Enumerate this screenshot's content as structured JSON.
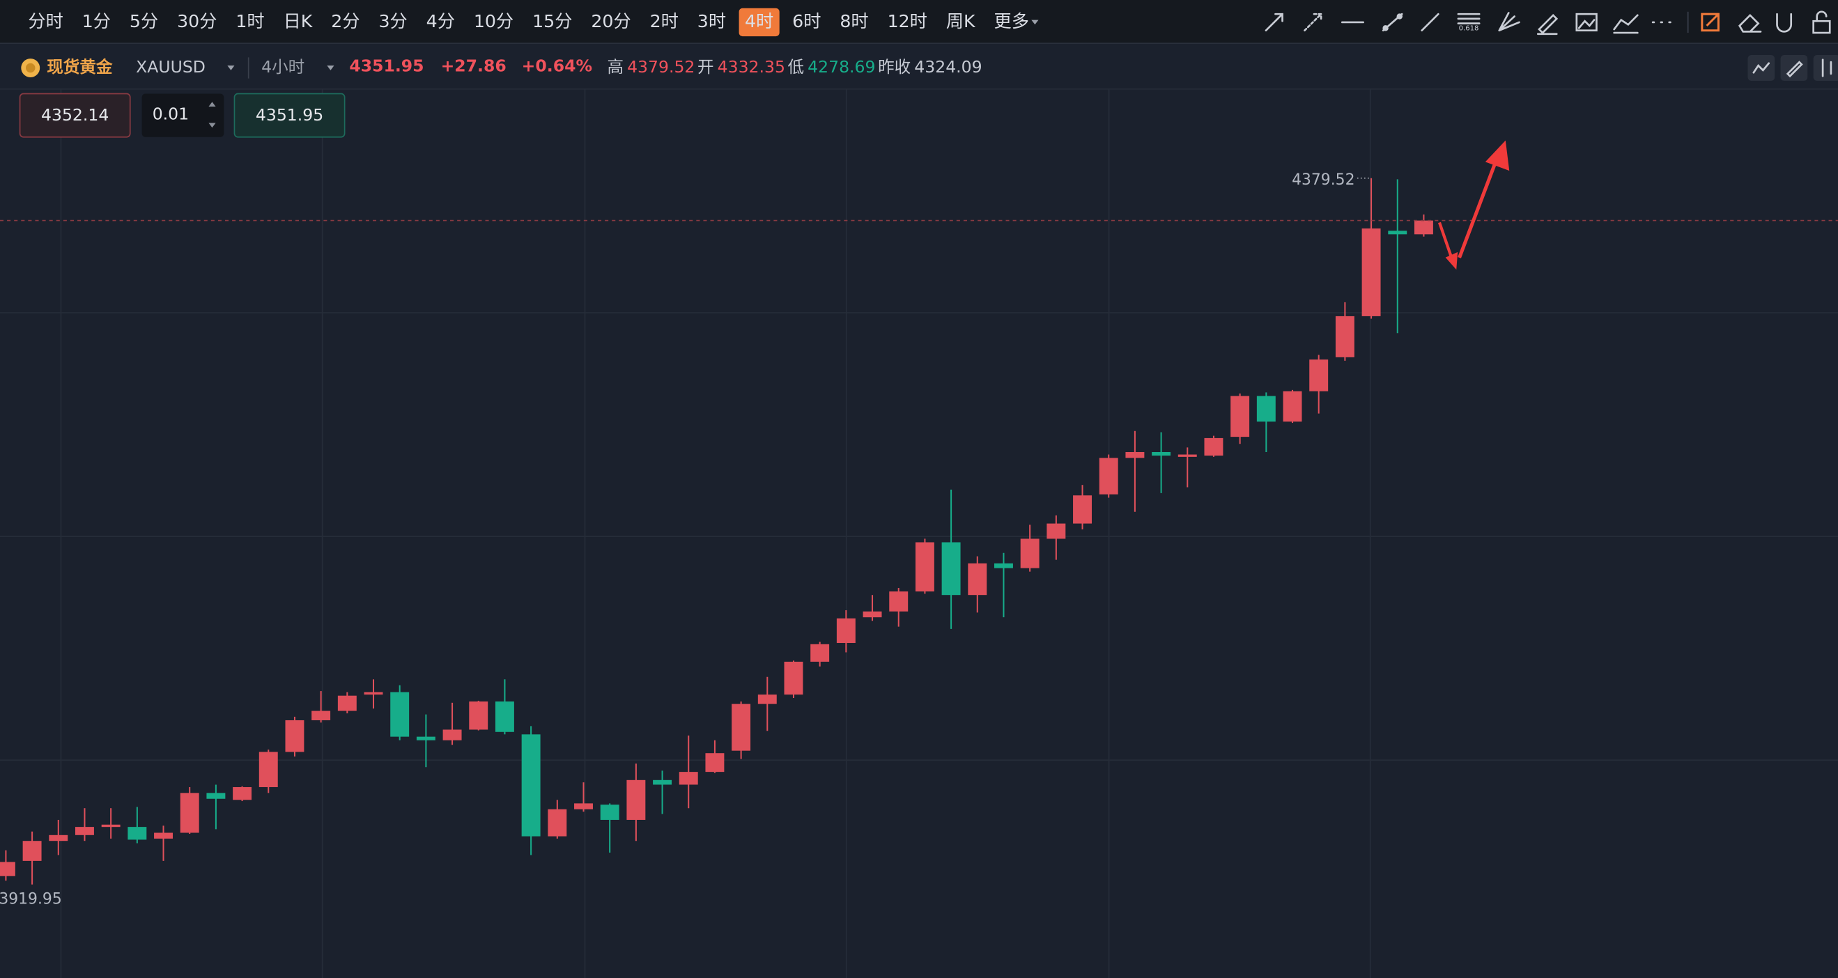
{
  "toolbar": {
    "intervals": [
      "分时",
      "1分",
      "5分",
      "30分",
      "1时",
      "日K",
      "2分",
      "3分",
      "4分",
      "10分",
      "15分",
      "20分",
      "2时",
      "3时",
      "4时",
      "6时",
      "8时",
      "12时",
      "周K"
    ],
    "active": "4时",
    "more": "更多"
  },
  "header": {
    "name": "现货黄金",
    "symbol": "XAUUSD",
    "period": "4小时",
    "price": "4351.95",
    "change": "+27.86",
    "change_pct": "+0.64%",
    "high_label": "高",
    "high": "4379.52",
    "open_label": "开",
    "open": "4332.35",
    "low_label": "低",
    "low": "4278.69",
    "prev_close_label": "昨收",
    "prev_close": "4324.09"
  },
  "order": {
    "sell": "4352.14",
    "lots": "0.01",
    "buy": "4351.95"
  },
  "chart_data": {
    "type": "candlestick",
    "up_color": "#e0505b",
    "down_color": "#17ad8a",
    "ylim": [
      3859.1,
      4436.0
    ],
    "open": [
      3925.4,
      3935.3,
      3948.3,
      3952.1,
      3957.4,
      3957.4,
      3949.8,
      3953.6,
      3979.5,
      3975.0,
      3983.3,
      4006.2,
      4026.8,
      4032.9,
      4043.5,
      4045.1,
      4016.1,
      4013.8,
      4020.7,
      4039.0,
      4017.6,
      3951.3,
      3968.9,
      3971.9,
      3962.0,
      3987.9,
      3984.9,
      3993.2,
      4007.0,
      4037.4,
      4043.5,
      4064.9,
      4077.1,
      4093.8,
      4097.6,
      4110.6,
      4142.6,
      4108.3,
      4128.9,
      4125.8,
      4144.9,
      4154.8,
      4173.8,
      4197.5,
      4201.3,
      4198.2,
      4199.0,
      4211.2,
      4237.8,
      4221.1,
      4240.9,
      4263.0,
      4289.7,
      4345.3,
      4343.0
    ],
    "high": [
      3942.2,
      3954.4,
      3962.0,
      3969.6,
      3969.6,
      3970.4,
      3958.2,
      3983.3,
      3984.9,
      3983.8,
      4007.7,
      4029.1,
      4045.8,
      4045.1,
      4053.4,
      4049.6,
      4030.6,
      4038.2,
      4039.5,
      4053.4,
      4023.0,
      3975.0,
      3986.4,
      3972.7,
      3998.6,
      3994.0,
      4016.9,
      4013.8,
      4039.0,
      4055.0,
      4065.6,
      4077.8,
      4098.4,
      4108.3,
      4112.9,
      4144.9,
      4176.9,
      4133.5,
      4135.7,
      4154.0,
      4160.1,
      4179.9,
      4199.7,
      4215.0,
      4214.2,
      4204.3,
      4211.9,
      4239.4,
      4240.1,
      4241.7,
      4264.5,
      4298.8,
      4379.52,
      4378.8,
      4355.9
    ],
    "low": [
      3922.4,
      3919.95,
      3939.1,
      3948.3,
      3949.8,
      3946.8,
      3935.3,
      3952.9,
      3955.9,
      3974.2,
      3979.5,
      4003.2,
      4025.3,
      4031.3,
      4034.4,
      4013.8,
      3996.3,
      4010.8,
      4020.2,
      4017.6,
      3939.1,
      3949.8,
      3967.3,
      3940.7,
      3948.3,
      3965.8,
      3969.6,
      3992.5,
      4001.6,
      4019.9,
      4041.3,
      4061.8,
      4071.0,
      4091.5,
      4087.7,
      4109.1,
      4086.2,
      4096.9,
      4093.8,
      4123.5,
      4131.2,
      4151.0,
      4171.6,
      4162.4,
      4174.6,
      4178.4,
      4198.2,
      4206.6,
      4201.3,
      4220.3,
      4226.4,
      4260.7,
      4288.1,
      4278.7,
      4341.5
    ],
    "close": [
      3934.6,
      3948.3,
      3952.1,
      3957.4,
      3958.9,
      3949.1,
      3953.6,
      3979.5,
      3975.7,
      3983.3,
      4006.2,
      4026.8,
      4032.9,
      4042.8,
      4045.1,
      4016.1,
      4013.8,
      4020.7,
      4039.0,
      4019.2,
      3951.3,
      3968.9,
      3972.7,
      3962.0,
      3987.9,
      3984.9,
      3993.2,
      4005.4,
      4037.4,
      4043.5,
      4064.9,
      4076.3,
      4093.1,
      4097.6,
      4110.6,
      4142.6,
      4108.3,
      4128.9,
      4125.8,
      4144.9,
      4154.8,
      4173.1,
      4197.5,
      4201.3,
      4199.0,
      4199.7,
      4210.4,
      4237.8,
      4221.1,
      4240.9,
      4261.5,
      4289.7,
      4346.8,
      4343.0,
      4351.95
    ]
  }
}
